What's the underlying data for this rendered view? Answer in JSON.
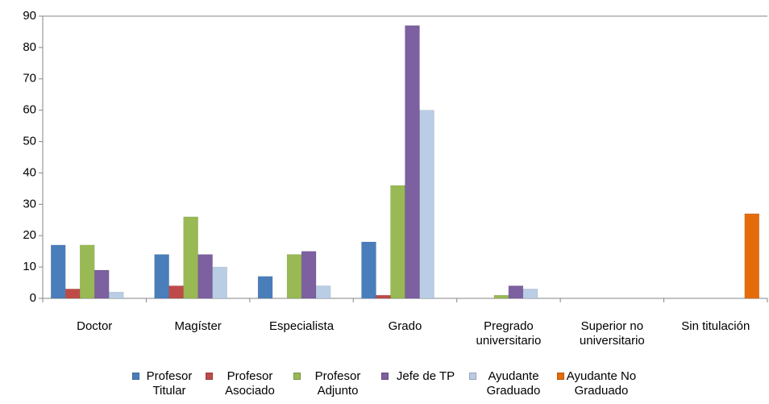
{
  "chart_data": {
    "type": "bar",
    "categories": [
      "Doctor",
      "Magíster",
      "Especialista",
      "Grado",
      "Pregrado universitario",
      "Superior no universitario",
      "Sin titulación"
    ],
    "series": [
      {
        "name": "Profesor Titular",
        "color": "#4a7ebb",
        "values": [
          17,
          14,
          7,
          18,
          0,
          0,
          0
        ]
      },
      {
        "name": "Profesor Asociado",
        "color": "#be4b48",
        "values": [
          3,
          4,
          0,
          1,
          0,
          0,
          0
        ]
      },
      {
        "name": "Profesor Adjunto",
        "color": "#98b954",
        "values": [
          17,
          26,
          14,
          36,
          1,
          0,
          0
        ]
      },
      {
        "name": "Jefe de TP",
        "color": "#7d60a0",
        "values": [
          9,
          14,
          15,
          87,
          4,
          0,
          0
        ]
      },
      {
        "name": "Ayudante Graduado",
        "color": "#b9cde5",
        "values": [
          2,
          10,
          4,
          60,
          3,
          0,
          0
        ]
      },
      {
        "name": "Ayudante No Graduado",
        "color": "#e46c0a",
        "values": [
          0,
          0,
          0,
          0,
          0,
          0,
          27
        ]
      }
    ],
    "ylim": [
      0,
      90
    ],
    "yticks": [
      0,
      10,
      20,
      30,
      40,
      50,
      60,
      70,
      80,
      90
    ],
    "grid": false
  }
}
